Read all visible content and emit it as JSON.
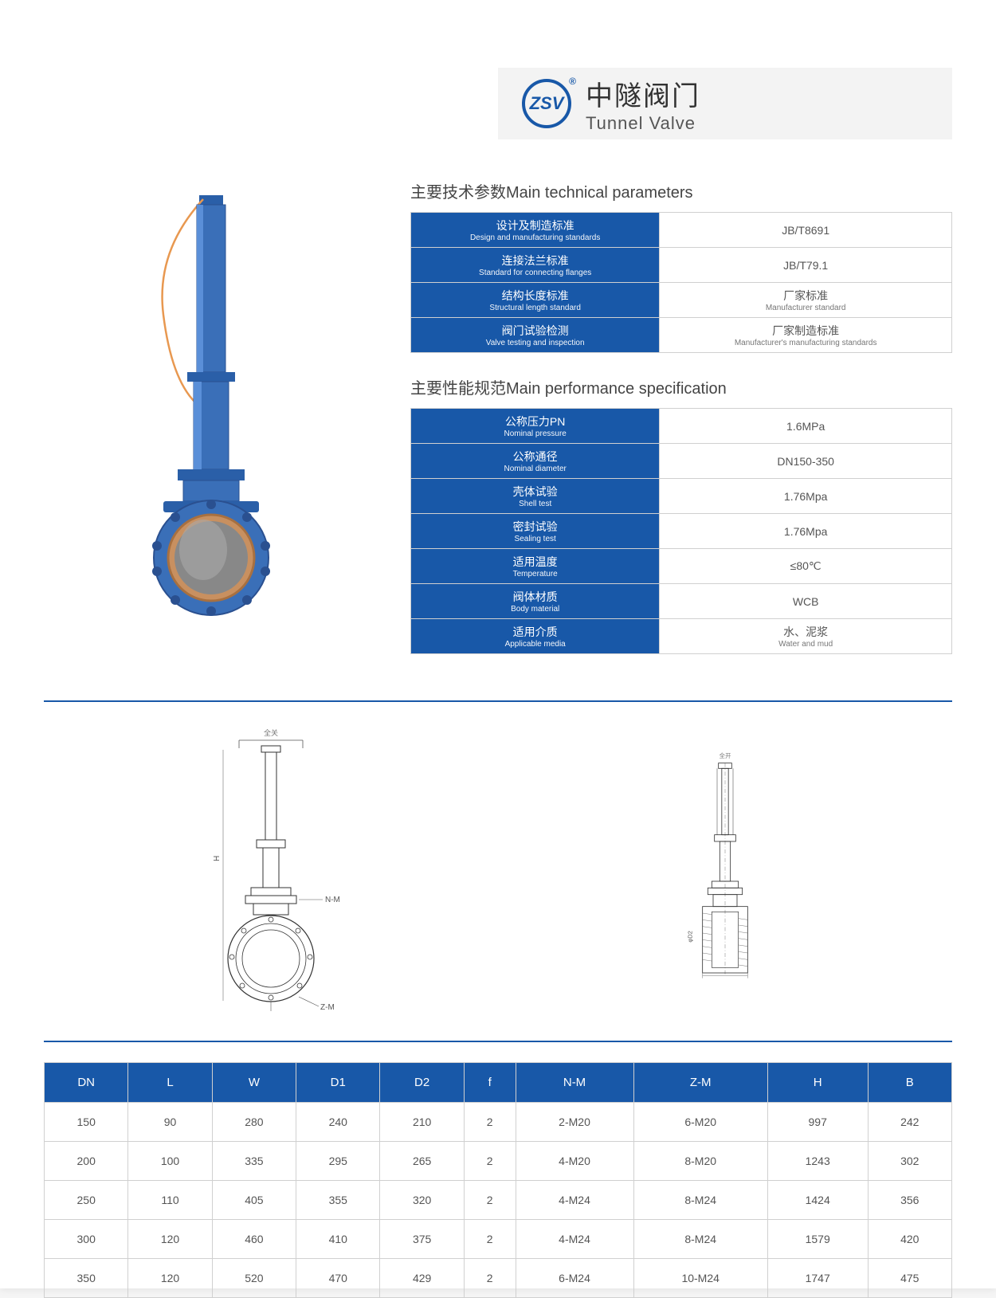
{
  "brand": {
    "cn": "中隧阀门",
    "en": "Tunnel Valve",
    "logo_text": "ZSV"
  },
  "colors": {
    "primary": "#1858a8",
    "border": "#d0d0d0",
    "text": "#555",
    "bg_band": "#f3f3f3"
  },
  "section1": {
    "title": "主要技术参数Main technical parameters",
    "rows": [
      {
        "label_cn": "设计及制造标准",
        "label_en": "Design and manufacturing standards",
        "value": "JB/T8691",
        "value_en": ""
      },
      {
        "label_cn": "连接法兰标准",
        "label_en": "Standard for connecting flanges",
        "value": "JB/T79.1",
        "value_en": ""
      },
      {
        "label_cn": "结构长度标准",
        "label_en": "Structural length standard",
        "value": "厂家标准",
        "value_en": "Manufacturer standard"
      },
      {
        "label_cn": "阀门试验检测",
        "label_en": "Valve testing and inspection",
        "value": "厂家制造标准",
        "value_en": "Manufacturer's manufacturing standards"
      }
    ]
  },
  "section2": {
    "title": "主要性能规范Main performance specification",
    "rows": [
      {
        "label_cn": "公称压力PN",
        "label_en": "Nominal pressure",
        "value": "1.6MPa",
        "value_en": ""
      },
      {
        "label_cn": "公称通径",
        "label_en": "Nominal diameter",
        "value": "DN150-350",
        "value_en": ""
      },
      {
        "label_cn": "壳体试验",
        "label_en": "Shell test",
        "value": "1.76Mpa",
        "value_en": ""
      },
      {
        "label_cn": "密封试验",
        "label_en": "Sealing test",
        "value": "1.76Mpa",
        "value_en": ""
      },
      {
        "label_cn": "适用温度",
        "label_en": "Temperature",
        "value": "≤80℃",
        "value_en": ""
      },
      {
        "label_cn": "阀体材质",
        "label_en": "Body material",
        "value": "WCB",
        "value_en": ""
      },
      {
        "label_cn": "适用介质",
        "label_en": "Applicable media",
        "value": "水、泥浆",
        "value_en": "Water and mud"
      }
    ]
  },
  "diagram_labels": {
    "left_top": "全关",
    "right_top": "全开",
    "nm": "N-M",
    "zm": "Z-M"
  },
  "dim_table": {
    "columns": [
      "DN",
      "L",
      "W",
      "D1",
      "D2",
      "f",
      "N-M",
      "Z-M",
      "H",
      "B"
    ],
    "rows": [
      [
        "150",
        "90",
        "280",
        "240",
        "210",
        "2",
        "2-M20",
        "6-M20",
        "997",
        "242"
      ],
      [
        "200",
        "100",
        "335",
        "295",
        "265",
        "2",
        "4-M20",
        "8-M20",
        "1243",
        "302"
      ],
      [
        "250",
        "110",
        "405",
        "355",
        "320",
        "2",
        "4-M24",
        "8-M24",
        "1424",
        "356"
      ],
      [
        "300",
        "120",
        "460",
        "410",
        "375",
        "2",
        "4-M24",
        "8-M24",
        "1579",
        "420"
      ],
      [
        "350",
        "120",
        "520",
        "470",
        "429",
        "2",
        "6-M24",
        "10-M24",
        "1747",
        "475"
      ]
    ]
  }
}
